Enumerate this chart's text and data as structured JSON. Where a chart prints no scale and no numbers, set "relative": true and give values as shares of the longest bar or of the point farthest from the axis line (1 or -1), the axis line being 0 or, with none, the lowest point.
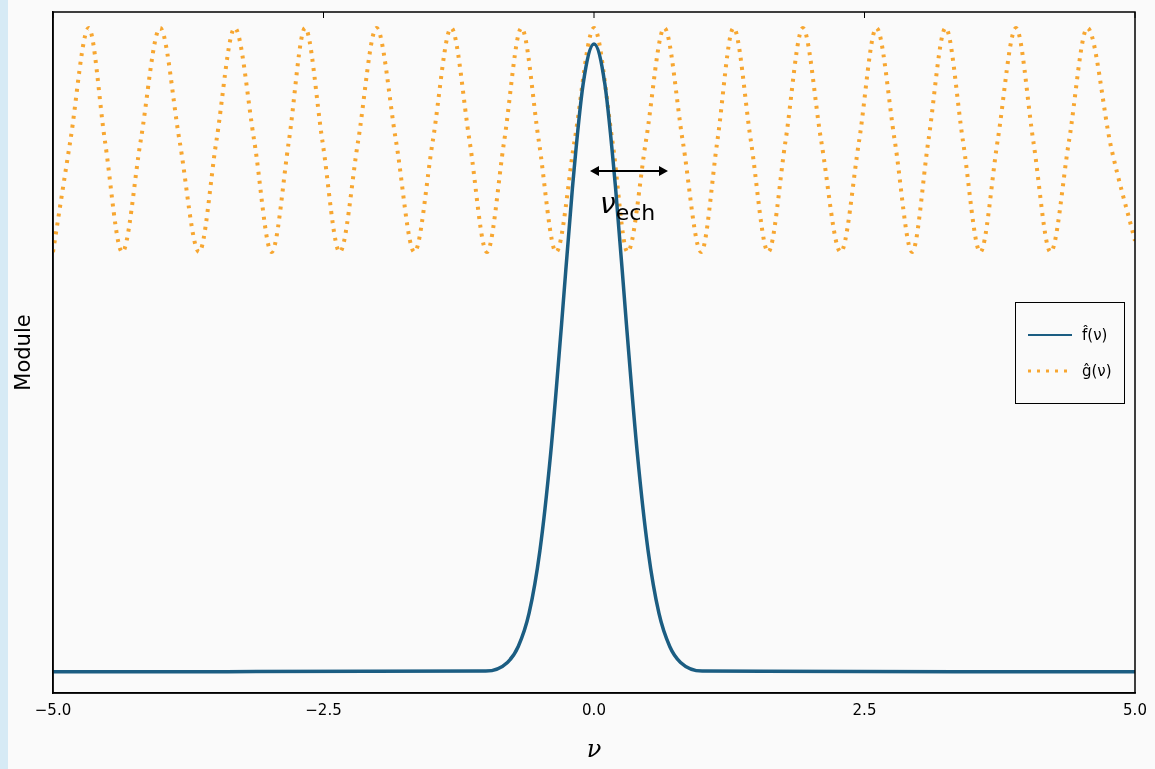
{
  "chart_data": {
    "type": "line",
    "relative": true,
    "xlabel": "ν",
    "ylabel": "Module",
    "legend": "right",
    "marker": "none",
    "xlim": [
      -5,
      5
    ],
    "xticks": [
      {
        "value": -5,
        "label": "−5.0"
      },
      {
        "value": -2.5,
        "label": "−2.5"
      },
      {
        "value": 0,
        "label": "0.0"
      },
      {
        "value": 2.5,
        "label": "2.5"
      },
      {
        "value": 5,
        "label": "5.0"
      }
    ],
    "annotations": [
      "ν$_{ech}$"
    ],
    "series": [
      {
        "name": "f̂(ν)",
        "color": "#1b5d82",
        "line_style": "solid",
        "x": [
          -5,
          -1,
          -0.8,
          -0.7,
          -0.6,
          -0.5,
          -0.4,
          -0.3,
          -0.2,
          -0.1,
          0,
          0.1,
          0.2,
          0.3,
          0.4,
          0.5,
          0.6,
          0.7,
          0.8,
          1,
          5
        ],
        "values": [
          0.032,
          0.033,
          0.046,
          0.07,
          0.12,
          0.214,
          0.361,
          0.554,
          0.758,
          0.916,
          0.976,
          0.916,
          0.758,
          0.554,
          0.361,
          0.214,
          0.12,
          0.07,
          0.046,
          0.033,
          0.032
        ]
      },
      {
        "name": "ĝ(ν)",
        "color": "#f7a630",
        "line_style": "dotted",
        "x": [
          -5,
          -4.84,
          -4.67,
          -4.52,
          -4.36,
          -4.19,
          -4.01,
          -3.83,
          -3.65,
          -3.49,
          -3.32,
          -3.14,
          -2.98,
          -2.82,
          -2.67,
          -2.51,
          -2.35,
          -2.18,
          -2.01,
          -1.83,
          -1.66,
          -1.49,
          -1.32,
          -1.15,
          -0.99,
          -0.83,
          -0.67,
          -0.51,
          -0.35,
          -0.18,
          0,
          0.17,
          0.31,
          0.48,
          0.65,
          0.82,
          0.99,
          1.14,
          1.29,
          1.45,
          1.61,
          1.77,
          1.93,
          2.1,
          2.28,
          2.45,
          2.61,
          2.78,
          2.94,
          3.09,
          3.25,
          3.41,
          3.57,
          3.73,
          3.9,
          4.06,
          4.22,
          4.39,
          4.56,
          4.78,
          5
        ],
        "values": [
          0.663,
          0.83,
          1,
          0.83,
          0.663,
          0.83,
          1,
          0.83,
          0.663,
          0.83,
          1,
          0.83,
          0.663,
          0.83,
          1,
          0.83,
          0.663,
          0.83,
          1,
          0.83,
          0.663,
          0.83,
          1,
          0.83,
          0.663,
          0.83,
          1,
          0.83,
          0.663,
          0.83,
          1,
          0.83,
          0.663,
          0.83,
          1,
          0.83,
          0.663,
          0.83,
          1,
          0.83,
          0.663,
          0.83,
          1,
          0.83,
          0.663,
          0.83,
          1,
          0.83,
          0.663,
          0.83,
          1,
          0.83,
          0.663,
          0.83,
          1,
          0.83,
          0.663,
          0.83,
          1,
          0.82,
          0.68
        ]
      }
    ]
  }
}
